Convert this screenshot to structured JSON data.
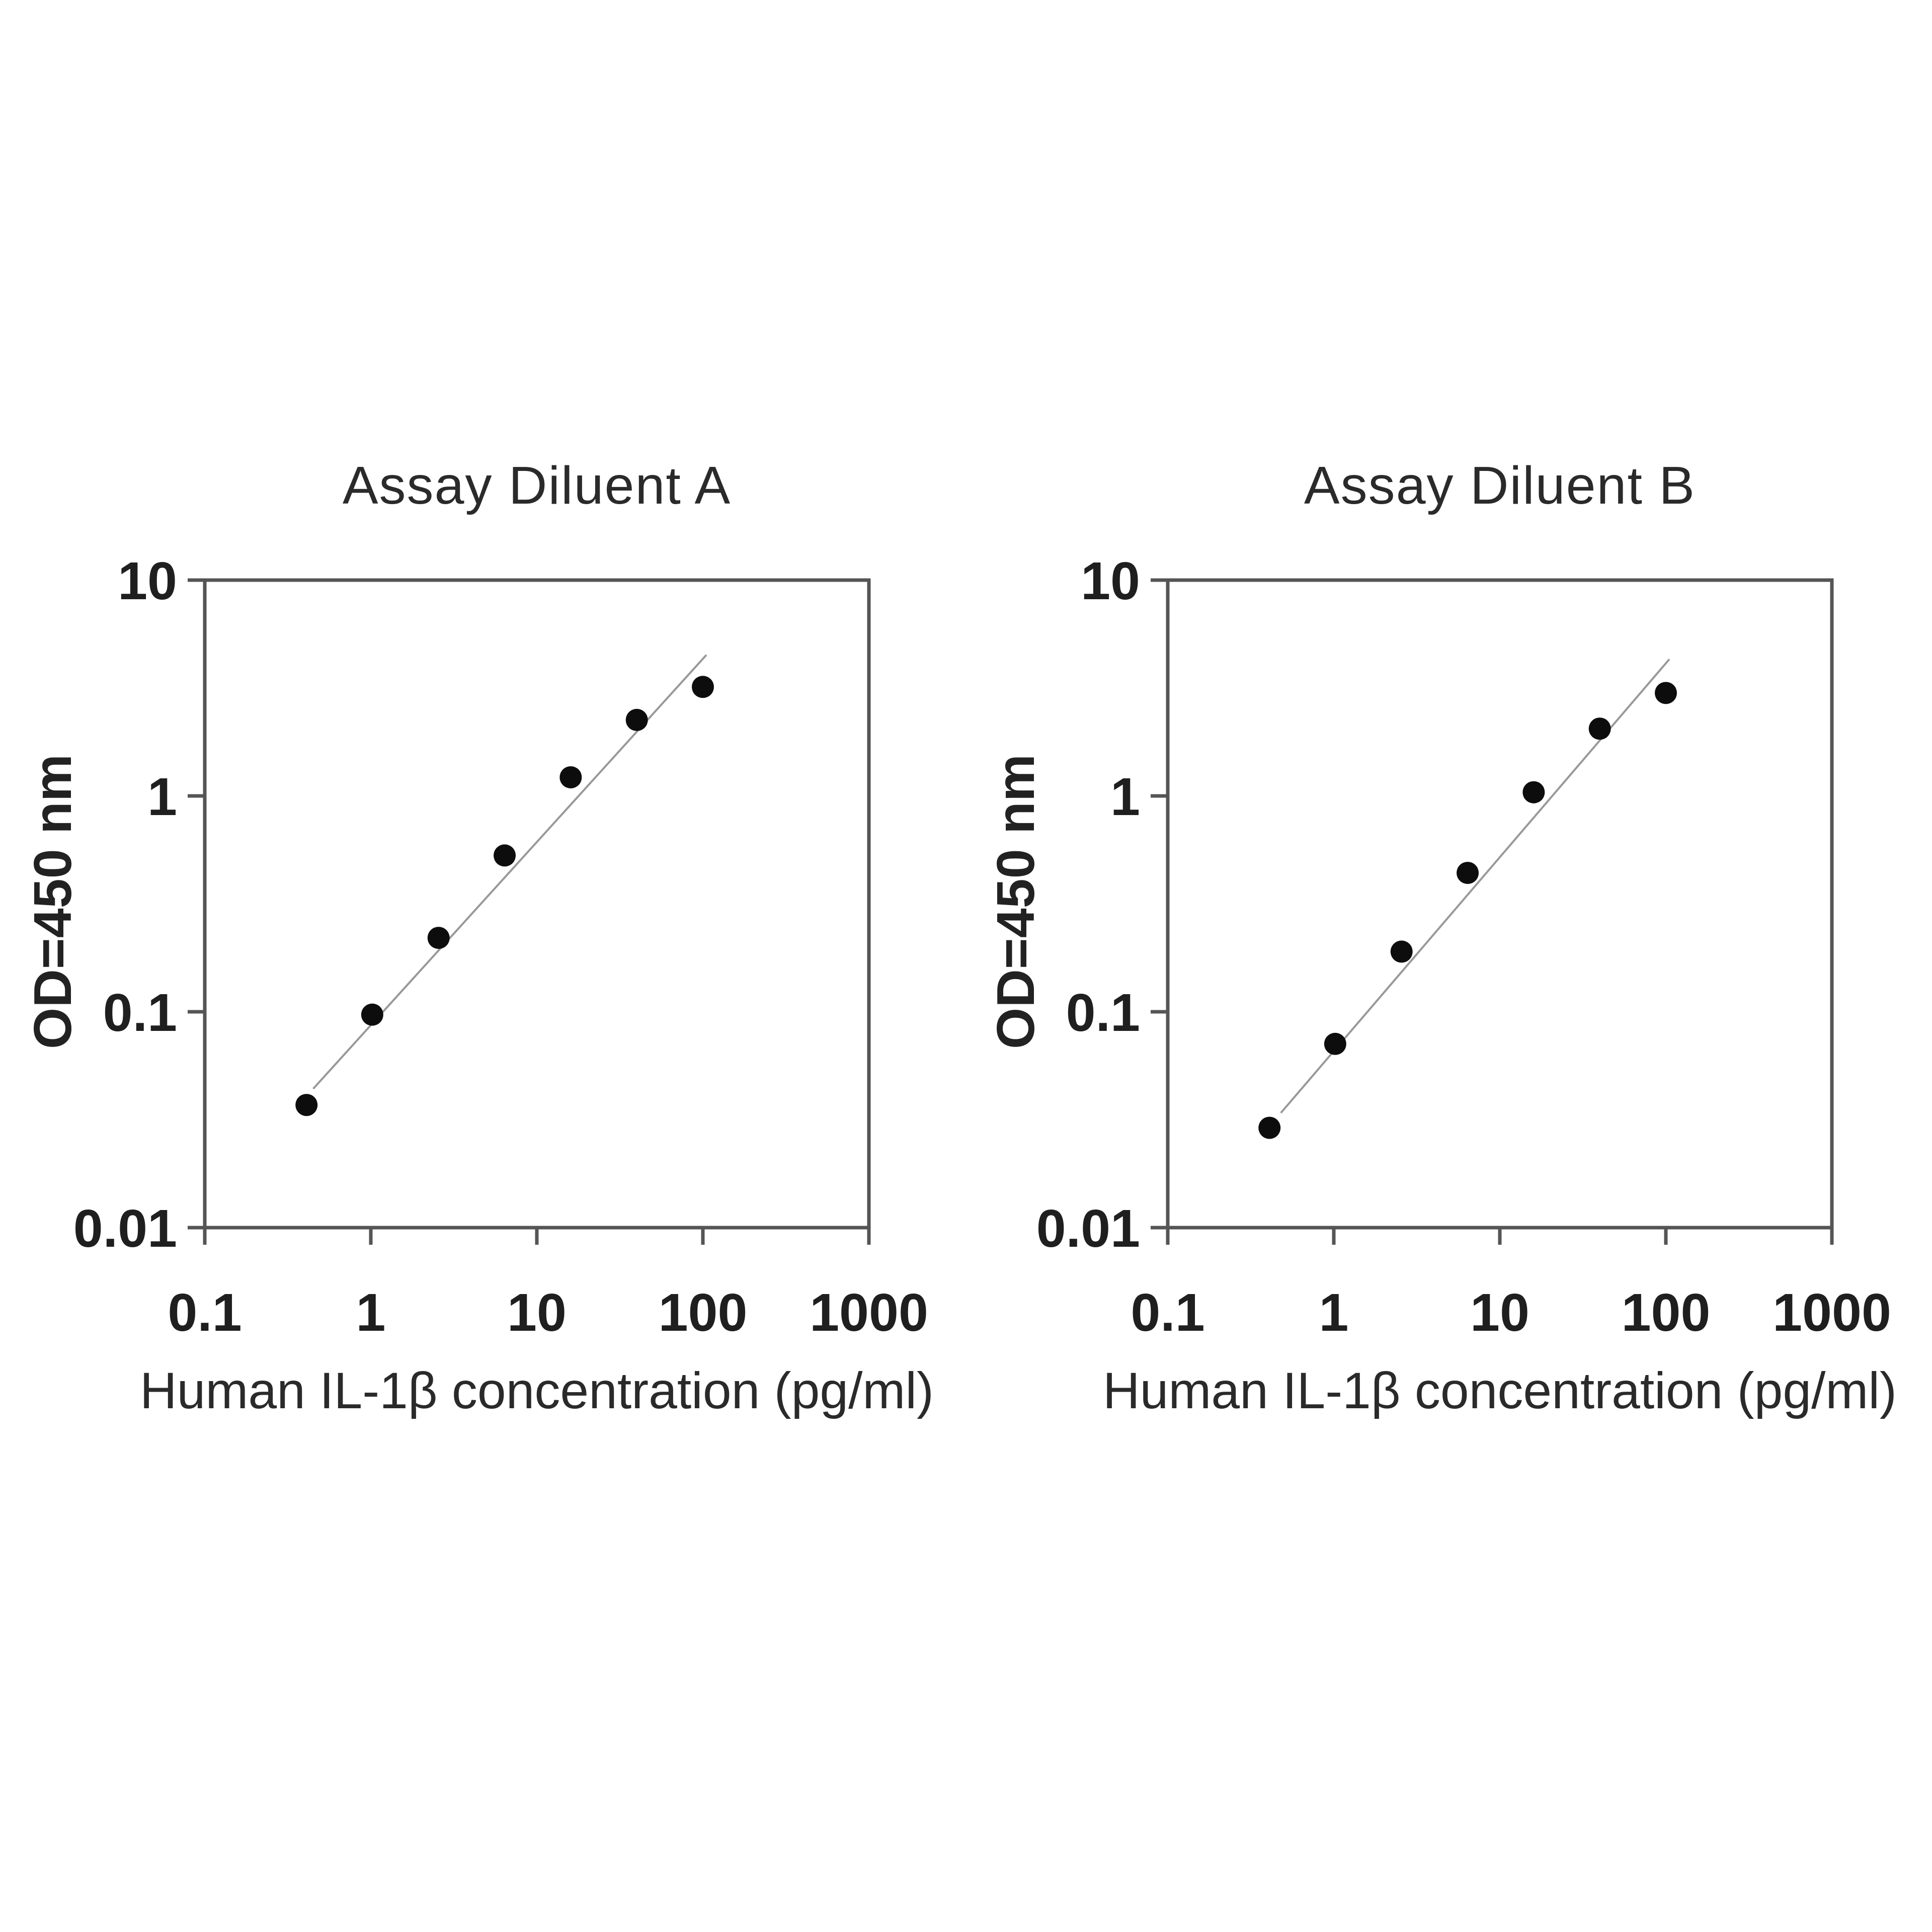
{
  "figure": {
    "background": "#ffffff"
  },
  "colors": {
    "axis": "#555555",
    "tick_text": "#1f1f1f",
    "label_text": "#2a2a2a",
    "point": "#0d0d0d",
    "trendline": "#999999"
  },
  "chart_data": [
    {
      "type": "scatter",
      "title": "Assay Diluent A",
      "xlabel": "Human IL-1β concentration (pg/ml)",
      "ylabel": "OD=450 nm",
      "xscale": "log",
      "yscale": "log",
      "xlim": [
        0.1,
        1000
      ],
      "ylim": [
        0.01,
        10
      ],
      "xticks": [
        0.1,
        1,
        10,
        100,
        1000
      ],
      "xtick_labels": [
        "0.1",
        "1",
        "10",
        "100",
        "1000"
      ],
      "yticks": [
        10,
        1,
        0.1,
        0.01
      ],
      "ytick_labels": [
        "10",
        "1",
        "0.1",
        "0.01"
      ],
      "grid": false,
      "marker": "filled-circle",
      "points": {
        "x": [
          0.41,
          1.02,
          2.56,
          6.4,
          16,
          40,
          100
        ],
        "y": [
          0.037,
          0.097,
          0.22,
          0.53,
          1.22,
          2.25,
          3.2
        ]
      },
      "trendline": {
        "x": [
          0.45,
          105
        ],
        "y": [
          0.044,
          4.5
        ]
      }
    },
    {
      "type": "scatter",
      "title": "Assay Diluent B",
      "xlabel": "Human IL-1β concentration (pg/ml)",
      "ylabel": "OD=450 nm",
      "xscale": "log",
      "yscale": "log",
      "xlim": [
        0.1,
        1000
      ],
      "ylim": [
        0.01,
        10
      ],
      "xticks": [
        0.1,
        1,
        10,
        100,
        1000
      ],
      "xtick_labels": [
        "0.1",
        "1",
        "10",
        "100",
        "1000"
      ],
      "yticks": [
        10,
        1,
        0.1,
        0.01
      ],
      "ytick_labels": [
        "10",
        "1",
        "0.1",
        "0.01"
      ],
      "grid": false,
      "marker": "filled-circle",
      "points": {
        "x": [
          0.41,
          1.02,
          2.56,
          6.4,
          16,
          40,
          100
        ],
        "y": [
          0.029,
          0.071,
          0.19,
          0.44,
          1.04,
          2.05,
          3.0
        ]
      },
      "trendline": {
        "x": [
          0.48,
          105
        ],
        "y": [
          0.034,
          4.3
        ]
      }
    }
  ]
}
